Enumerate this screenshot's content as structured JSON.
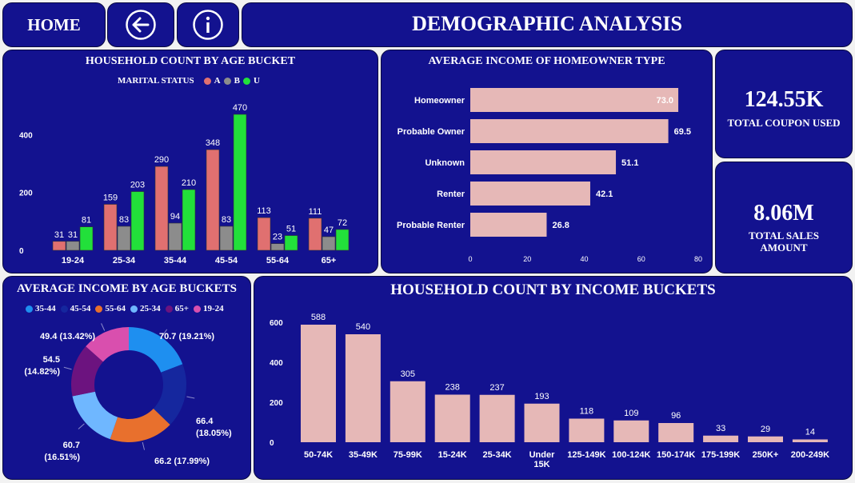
{
  "nav": {
    "home_label": "HOME",
    "back_icon": "back-arrow-icon",
    "info_icon": "info-icon"
  },
  "header": {
    "title": "DEMOGRAPHIC ANALYSIS"
  },
  "colors": {
    "card_bg": "#13128f",
    "bar_pink": "#e6b8b7",
    "A": "#e07070",
    "B": "#8c8c8c",
    "U": "#22e03a"
  },
  "household_age": {
    "title": "HOUSEHOLD COUNT BY AGE BUCKET",
    "legend_title": "MARITAL STATUS",
    "chart_data": {
      "type": "bar",
      "title": "HOUSEHOLD COUNT BY AGE BUCKET",
      "categories": [
        "19-24",
        "25-34",
        "35-44",
        "45-54",
        "55-64",
        "65+"
      ],
      "series": [
        {
          "name": "A",
          "values": [
            31,
            159,
            290,
            348,
            113,
            111
          ]
        },
        {
          "name": "B",
          "values": [
            31,
            83,
            94,
            83,
            23,
            47
          ]
        },
        {
          "name": "U",
          "values": [
            81,
            203,
            210,
            470,
            51,
            72
          ]
        }
      ],
      "yticks": [
        0,
        200,
        400
      ],
      "ylim": [
        0,
        470
      ]
    }
  },
  "income_homeowner": {
    "title": "AVERAGE INCOME OF HOMEOWNER TYPE",
    "chart_data": {
      "type": "bar",
      "orientation": "horizontal",
      "title": "AVERAGE INCOME OF HOMEOWNER TYPE",
      "categories": [
        "Homeowner",
        "Probable Owner",
        "Unknown",
        "Renter",
        "Probable Renter"
      ],
      "values": [
        73.0,
        69.5,
        51.1,
        42.1,
        26.8
      ],
      "labels": [
        "73.0",
        "69.5",
        "51.1",
        "42.1",
        "26.8"
      ],
      "xticks": [
        0,
        20,
        40,
        60,
        80
      ],
      "xlim": [
        0,
        80
      ]
    }
  },
  "kpis": [
    {
      "value": "124.55K",
      "label": "TOTAL COUPON USED"
    },
    {
      "value": "8.06M",
      "label_line1": "TOTAL SALES",
      "label_line2": "AMOUNT"
    }
  ],
  "income_age": {
    "title": "AVERAGE INCOME BY AGE BUCKETS",
    "chart_data": {
      "type": "pie",
      "variant": "donut",
      "title": "AVERAGE INCOME BY AGE BUCKETS",
      "slices": [
        {
          "name": "35-44",
          "value": 70.7,
          "percent": "19.21%",
          "color": "#1e8ff0"
        },
        {
          "name": "45-54",
          "value": 66.4,
          "percent": "18.05%",
          "color": "#15279e"
        },
        {
          "name": "55-64",
          "value": 66.2,
          "percent": "17.99%",
          "color": "#e8702d"
        },
        {
          "name": "25-34",
          "value": 60.7,
          "percent": "16.51%",
          "color": "#6fb7ff"
        },
        {
          "name": "65+",
          "value": 54.5,
          "percent": "14.82%",
          "color": "#6c137f"
        },
        {
          "name": "19-24",
          "value": 49.4,
          "percent": "13.42%",
          "color": "#d94fae"
        }
      ],
      "data_labels": [
        [
          "70.7 (19.21%)"
        ],
        [
          "66.4",
          "(18.05%)"
        ],
        [
          "66.2 (17.99%)"
        ],
        [
          "60.7",
          "(16.51%)"
        ],
        [
          "54.5",
          "(14.82%)"
        ],
        [
          "49.4 (13.42%)"
        ]
      ]
    }
  },
  "household_income": {
    "title": "HOUSEHOLD COUNT BY INCOME BUCKETS",
    "chart_data": {
      "type": "bar",
      "title": "HOUSEHOLD COUNT BY INCOME BUCKETS",
      "categories": [
        "50-74K",
        "35-49K",
        "75-99K",
        "15-24K",
        "25-34K",
        "Under 15K",
        "125-149K",
        "100-124K",
        "150-174K",
        "175-199K",
        "250K+",
        "200-249K"
      ],
      "category_lines": [
        [
          "50-74K"
        ],
        [
          "35-49K"
        ],
        [
          "75-99K"
        ],
        [
          "15-24K"
        ],
        [
          "25-34K"
        ],
        [
          "Under",
          "15K"
        ],
        [
          "125-149K"
        ],
        [
          "100-124K"
        ],
        [
          "150-174K"
        ],
        [
          "175-199K"
        ],
        [
          "250K+"
        ],
        [
          "200-249K"
        ]
      ],
      "values": [
        588,
        540,
        305,
        238,
        237,
        193,
        118,
        109,
        96,
        33,
        29,
        14
      ],
      "yticks": [
        0,
        200,
        400,
        600
      ],
      "ylim": [
        0,
        600
      ]
    }
  }
}
